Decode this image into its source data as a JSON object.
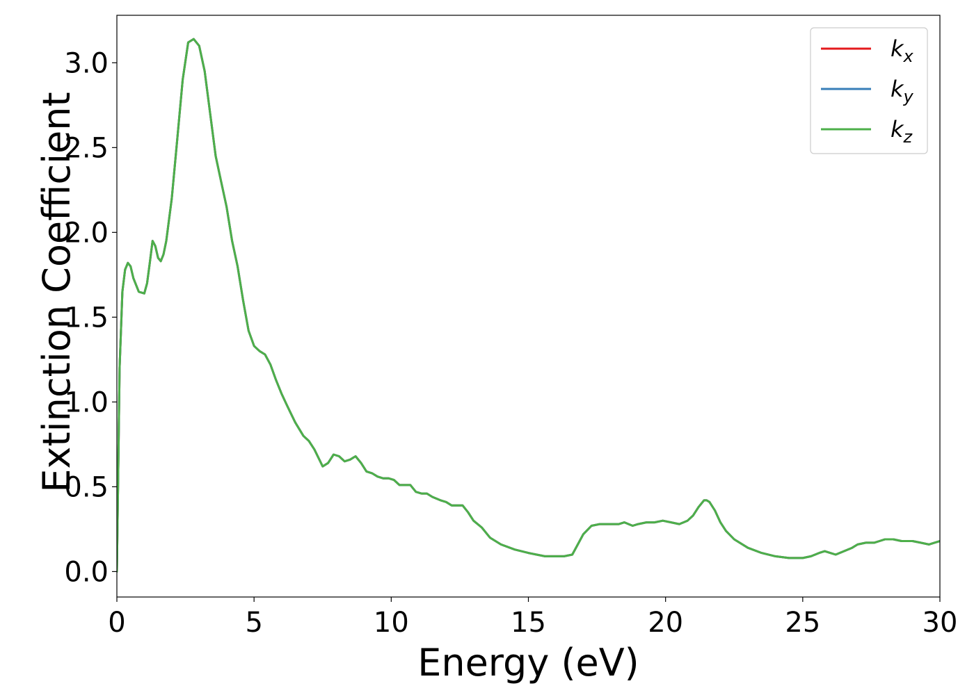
{
  "chart_data": {
    "type": "line",
    "title": "",
    "xlabel": "Energy (eV)",
    "ylabel": "Extinction Coefficient",
    "xlim": [
      0,
      30
    ],
    "ylim": [
      -0.15,
      3.28
    ],
    "xticks": [
      0,
      5,
      10,
      15,
      20,
      25,
      30
    ],
    "yticks": [
      0.0,
      0.5,
      1.0,
      1.5,
      2.0,
      2.5,
      3.0
    ],
    "xtick_labels": [
      "0",
      "5",
      "10",
      "15",
      "20",
      "25",
      "30"
    ],
    "ytick_labels": [
      "0.0",
      "0.5",
      "1.0",
      "1.5",
      "2.0",
      "2.5",
      "3.0"
    ],
    "grid": false,
    "legend_position": "top-right",
    "x": [
      0,
      0.05,
      0.1,
      0.2,
      0.3,
      0.4,
      0.5,
      0.6,
      0.8,
      1.0,
      1.1,
      1.2,
      1.3,
      1.4,
      1.5,
      1.6,
      1.7,
      1.8,
      2.0,
      2.2,
      2.4,
      2.6,
      2.8,
      3.0,
      3.2,
      3.4,
      3.6,
      3.8,
      4.0,
      4.2,
      4.4,
      4.6,
      4.8,
      5.0,
      5.2,
      5.4,
      5.6,
      5.8,
      6.0,
      6.2,
      6.5,
      6.8,
      7.0,
      7.2,
      7.5,
      7.7,
      7.9,
      8.1,
      8.3,
      8.5,
      8.7,
      8.9,
      9.1,
      9.3,
      9.5,
      9.7,
      9.9,
      10.1,
      10.3,
      10.5,
      10.7,
      10.9,
      11.1,
      11.3,
      11.5,
      11.8,
      12.0,
      12.2,
      12.4,
      12.6,
      12.8,
      13.0,
      13.3,
      13.6,
      14.0,
      14.5,
      15.0,
      15.3,
      15.6,
      16.0,
      16.3,
      16.6,
      16.8,
      17.0,
      17.3,
      17.6,
      18.0,
      18.3,
      18.5,
      18.8,
      19.0,
      19.3,
      19.6,
      19.9,
      20.2,
      20.5,
      20.8,
      21.0,
      21.2,
      21.4,
      21.5,
      21.6,
      21.8,
      22.0,
      22.2,
      22.5,
      23.0,
      23.5,
      24.0,
      24.5,
      25.0,
      25.3,
      25.6,
      25.8,
      26.0,
      26.2,
      26.5,
      26.8,
      27.0,
      27.3,
      27.6,
      27.8,
      28.0,
      28.3,
      28.6,
      29.0,
      29.3,
      29.6,
      29.8,
      30.0
    ],
    "series": [
      {
        "name": "k_x",
        "color": "#e41a1c",
        "values": [
          0.0,
          0.6,
          1.2,
          1.65,
          1.78,
          1.82,
          1.8,
          1.73,
          1.65,
          1.64,
          1.7,
          1.82,
          1.95,
          1.92,
          1.85,
          1.83,
          1.87,
          1.95,
          2.2,
          2.55,
          2.9,
          3.12,
          3.14,
          3.1,
          2.95,
          2.7,
          2.45,
          2.3,
          2.15,
          1.95,
          1.8,
          1.6,
          1.42,
          1.33,
          1.3,
          1.28,
          1.22,
          1.13,
          1.05,
          0.98,
          0.88,
          0.8,
          0.77,
          0.72,
          0.62,
          0.64,
          0.69,
          0.68,
          0.65,
          0.66,
          0.68,
          0.64,
          0.59,
          0.58,
          0.56,
          0.55,
          0.55,
          0.54,
          0.51,
          0.51,
          0.51,
          0.47,
          0.46,
          0.46,
          0.44,
          0.42,
          0.41,
          0.39,
          0.39,
          0.39,
          0.35,
          0.3,
          0.26,
          0.2,
          0.16,
          0.13,
          0.11,
          0.1,
          0.09,
          0.09,
          0.09,
          0.1,
          0.16,
          0.22,
          0.27,
          0.28,
          0.28,
          0.28,
          0.29,
          0.27,
          0.28,
          0.29,
          0.29,
          0.3,
          0.29,
          0.28,
          0.3,
          0.33,
          0.38,
          0.42,
          0.42,
          0.41,
          0.36,
          0.29,
          0.24,
          0.19,
          0.14,
          0.11,
          0.09,
          0.08,
          0.08,
          0.09,
          0.11,
          0.12,
          0.11,
          0.1,
          0.12,
          0.14,
          0.16,
          0.17,
          0.17,
          0.18,
          0.19,
          0.19,
          0.18,
          0.18,
          0.17,
          0.16,
          0.17,
          0.18
        ]
      },
      {
        "name": "k_y",
        "color": "#377eb8",
        "values": [
          0.0,
          0.6,
          1.2,
          1.65,
          1.78,
          1.82,
          1.8,
          1.73,
          1.65,
          1.64,
          1.7,
          1.82,
          1.95,
          1.92,
          1.85,
          1.83,
          1.87,
          1.95,
          2.2,
          2.55,
          2.9,
          3.12,
          3.14,
          3.1,
          2.95,
          2.7,
          2.45,
          2.3,
          2.15,
          1.95,
          1.8,
          1.6,
          1.42,
          1.33,
          1.3,
          1.28,
          1.22,
          1.13,
          1.05,
          0.98,
          0.88,
          0.8,
          0.77,
          0.72,
          0.62,
          0.64,
          0.69,
          0.68,
          0.65,
          0.66,
          0.68,
          0.64,
          0.59,
          0.58,
          0.56,
          0.55,
          0.55,
          0.54,
          0.51,
          0.51,
          0.51,
          0.47,
          0.46,
          0.46,
          0.44,
          0.42,
          0.41,
          0.39,
          0.39,
          0.39,
          0.35,
          0.3,
          0.26,
          0.2,
          0.16,
          0.13,
          0.11,
          0.1,
          0.09,
          0.09,
          0.09,
          0.1,
          0.16,
          0.22,
          0.27,
          0.28,
          0.28,
          0.28,
          0.29,
          0.27,
          0.28,
          0.29,
          0.29,
          0.3,
          0.29,
          0.28,
          0.3,
          0.33,
          0.38,
          0.42,
          0.42,
          0.41,
          0.36,
          0.29,
          0.24,
          0.19,
          0.14,
          0.11,
          0.09,
          0.08,
          0.08,
          0.09,
          0.11,
          0.12,
          0.11,
          0.1,
          0.12,
          0.14,
          0.16,
          0.17,
          0.17,
          0.18,
          0.19,
          0.19,
          0.18,
          0.18,
          0.17,
          0.16,
          0.17,
          0.18
        ]
      },
      {
        "name": "k_z",
        "color": "#4daf4a",
        "values": [
          0.0,
          0.6,
          1.2,
          1.65,
          1.78,
          1.82,
          1.8,
          1.73,
          1.65,
          1.64,
          1.7,
          1.82,
          1.95,
          1.92,
          1.85,
          1.83,
          1.87,
          1.95,
          2.2,
          2.55,
          2.9,
          3.12,
          3.14,
          3.1,
          2.95,
          2.7,
          2.45,
          2.3,
          2.15,
          1.95,
          1.8,
          1.6,
          1.42,
          1.33,
          1.3,
          1.28,
          1.22,
          1.13,
          1.05,
          0.98,
          0.88,
          0.8,
          0.77,
          0.72,
          0.62,
          0.64,
          0.69,
          0.68,
          0.65,
          0.66,
          0.68,
          0.64,
          0.59,
          0.58,
          0.56,
          0.55,
          0.55,
          0.54,
          0.51,
          0.51,
          0.51,
          0.47,
          0.46,
          0.46,
          0.44,
          0.42,
          0.41,
          0.39,
          0.39,
          0.39,
          0.35,
          0.3,
          0.26,
          0.2,
          0.16,
          0.13,
          0.11,
          0.1,
          0.09,
          0.09,
          0.09,
          0.1,
          0.16,
          0.22,
          0.27,
          0.28,
          0.28,
          0.28,
          0.29,
          0.27,
          0.28,
          0.29,
          0.29,
          0.3,
          0.29,
          0.28,
          0.3,
          0.33,
          0.38,
          0.42,
          0.42,
          0.41,
          0.36,
          0.29,
          0.24,
          0.19,
          0.14,
          0.11,
          0.09,
          0.08,
          0.08,
          0.09,
          0.11,
          0.12,
          0.11,
          0.1,
          0.12,
          0.14,
          0.16,
          0.17,
          0.17,
          0.18,
          0.19,
          0.19,
          0.18,
          0.18,
          0.17,
          0.16,
          0.17,
          0.18
        ]
      }
    ],
    "legend": [
      {
        "base": "k",
        "sub": "x",
        "color": "#e41a1c"
      },
      {
        "base": "k",
        "sub": "y",
        "color": "#377eb8"
      },
      {
        "base": "k",
        "sub": "z",
        "color": "#4daf4a"
      }
    ]
  }
}
